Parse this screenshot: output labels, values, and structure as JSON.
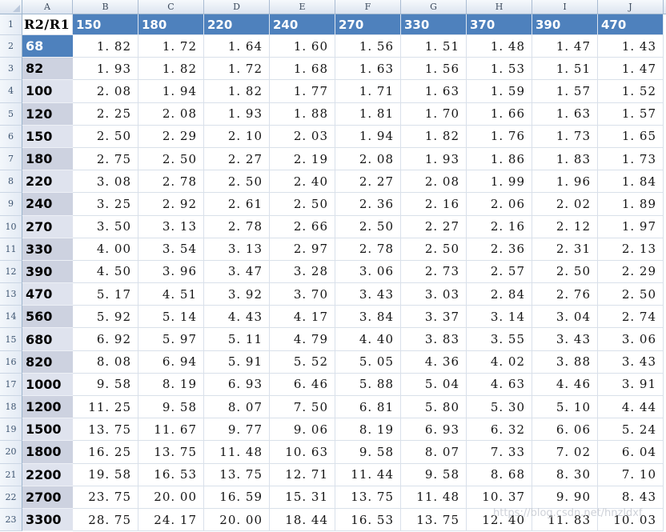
{
  "colors": {
    "accent_blue": "#4E81BD",
    "band_dark": "#CDD2E0",
    "band_light": "#DFE3EE",
    "gridline": "#D9E0EA",
    "header_border": "#9EB6CE"
  },
  "grid": {
    "column_letters": [
      "A",
      "B",
      "C",
      "D",
      "E",
      "F",
      "G",
      "H",
      "I",
      "J"
    ],
    "row_numbers": [
      "1",
      "2",
      "3",
      "4",
      "5",
      "6",
      "7",
      "8",
      "9",
      "10",
      "11",
      "12",
      "13",
      "14",
      "15",
      "16",
      "17",
      "18",
      "19",
      "20",
      "21",
      "22",
      "23"
    ]
  },
  "table": {
    "corner_cell": "R2/R1",
    "col_headers": [
      "150",
      "180",
      "220",
      "240",
      "270",
      "330",
      "370",
      "390",
      "470"
    ],
    "rows": [
      {
        "label": "68",
        "band": "selected",
        "values": [
          "1. 82",
          "1. 72",
          "1. 64",
          "1. 60",
          "1. 56",
          "1. 51",
          "1. 48",
          "1. 47",
          "1. 43"
        ]
      },
      {
        "label": "82",
        "band": "dark",
        "values": [
          "1. 93",
          "1. 82",
          "1. 72",
          "1. 68",
          "1. 63",
          "1. 56",
          "1. 53",
          "1. 51",
          "1. 47"
        ]
      },
      {
        "label": "100",
        "band": "light",
        "values": [
          "2. 08",
          "1. 94",
          "1. 82",
          "1. 77",
          "1. 71",
          "1. 63",
          "1. 59",
          "1. 57",
          "1. 52"
        ]
      },
      {
        "label": "120",
        "band": "dark",
        "values": [
          "2. 25",
          "2. 08",
          "1. 93",
          "1. 88",
          "1. 81",
          "1. 70",
          "1. 66",
          "1. 63",
          "1. 57"
        ]
      },
      {
        "label": "150",
        "band": "light",
        "values": [
          "2. 50",
          "2. 29",
          "2. 10",
          "2. 03",
          "1. 94",
          "1. 82",
          "1. 76",
          "1. 73",
          "1. 65"
        ]
      },
      {
        "label": "180",
        "band": "dark",
        "values": [
          "2. 75",
          "2. 50",
          "2. 27",
          "2. 19",
          "2. 08",
          "1. 93",
          "1. 86",
          "1. 83",
          "1. 73"
        ]
      },
      {
        "label": "220",
        "band": "light",
        "values": [
          "3. 08",
          "2. 78",
          "2. 50",
          "2. 40",
          "2. 27",
          "2. 08",
          "1. 99",
          "1. 96",
          "1. 84"
        ]
      },
      {
        "label": "240",
        "band": "dark",
        "values": [
          "3. 25",
          "2. 92",
          "2. 61",
          "2. 50",
          "2. 36",
          "2. 16",
          "2. 06",
          "2. 02",
          "1. 89"
        ]
      },
      {
        "label": "270",
        "band": "light",
        "values": [
          "3. 50",
          "3. 13",
          "2. 78",
          "2. 66",
          "2. 50",
          "2. 27",
          "2. 16",
          "2. 12",
          "1. 97"
        ]
      },
      {
        "label": "330",
        "band": "dark",
        "values": [
          "4. 00",
          "3. 54",
          "3. 13",
          "2. 97",
          "2. 78",
          "2. 50",
          "2. 36",
          "2. 31",
          "2. 13"
        ]
      },
      {
        "label": "390",
        "band": "dark",
        "values": [
          "4. 50",
          "3. 96",
          "3. 47",
          "3. 28",
          "3. 06",
          "2. 73",
          "2. 57",
          "2. 50",
          "2. 29"
        ]
      },
      {
        "label": "470",
        "band": "light",
        "values": [
          "5. 17",
          "4. 51",
          "3. 92",
          "3. 70",
          "3. 43",
          "3. 03",
          "2. 84",
          "2. 76",
          "2. 50"
        ]
      },
      {
        "label": "560",
        "band": "dark",
        "values": [
          "5. 92",
          "5. 14",
          "4. 43",
          "4. 17",
          "3. 84",
          "3. 37",
          "3. 14",
          "3. 04",
          "2. 74"
        ]
      },
      {
        "label": "680",
        "band": "light",
        "values": [
          "6. 92",
          "5. 97",
          "5. 11",
          "4. 79",
          "4. 40",
          "3. 83",
          "3. 55",
          "3. 43",
          "3. 06"
        ]
      },
      {
        "label": "820",
        "band": "dark",
        "values": [
          "8. 08",
          "6. 94",
          "5. 91",
          "5. 52",
          "5. 05",
          "4. 36",
          "4. 02",
          "3. 88",
          "3. 43"
        ]
      },
      {
        "label": "1000",
        "band": "light",
        "values": [
          "9. 58",
          "8. 19",
          "6. 93",
          "6. 46",
          "5. 88",
          "5. 04",
          "4. 63",
          "4. 46",
          "3. 91"
        ]
      },
      {
        "label": "1200",
        "band": "dark",
        "values": [
          "11. 25",
          "9. 58",
          "8. 07",
          "7. 50",
          "6. 81",
          "5. 80",
          "5. 30",
          "5. 10",
          "4. 44"
        ]
      },
      {
        "label": "1500",
        "band": "light",
        "values": [
          "13. 75",
          "11. 67",
          "9. 77",
          "9. 06",
          "8. 19",
          "6. 93",
          "6. 32",
          "6. 06",
          "5. 24"
        ]
      },
      {
        "label": "1800",
        "band": "dark",
        "values": [
          "16. 25",
          "13. 75",
          "11. 48",
          "10. 63",
          "9. 58",
          "8. 07",
          "7. 33",
          "7. 02",
          "6. 04"
        ]
      },
      {
        "label": "2200",
        "band": "light",
        "values": [
          "19. 58",
          "16. 53",
          "13. 75",
          "12. 71",
          "11. 44",
          "9. 58",
          "8. 68",
          "8. 30",
          "7. 10"
        ]
      },
      {
        "label": "2700",
        "band": "dark",
        "values": [
          "23. 75",
          "20. 00",
          "16. 59",
          "15. 31",
          "13. 75",
          "11. 48",
          "10. 37",
          "9. 90",
          "8. 43"
        ]
      },
      {
        "label": "3300",
        "band": "light",
        "values": [
          "28. 75",
          "24. 17",
          "20. 00",
          "18. 44",
          "16. 53",
          "13. 75",
          "12. 40",
          "11. 83",
          "10. 03"
        ]
      }
    ]
  },
  "watermark": {
    "text": "https://blog.csdn.net/hnzldxf"
  }
}
